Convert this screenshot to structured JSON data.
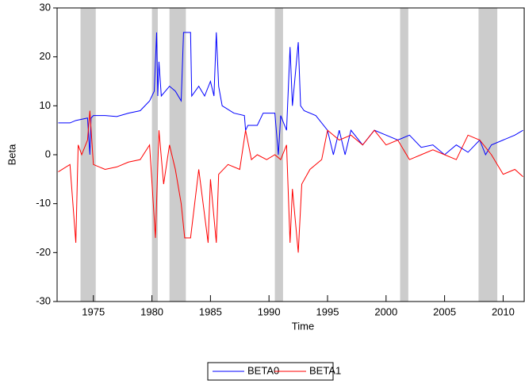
{
  "chart_data": {
    "type": "line",
    "x_label": "Time",
    "y_label": "Beta",
    "xlim": [
      1971.9,
      2011.8
    ],
    "xticks": [
      1975,
      1980,
      1985,
      1990,
      1995,
      2000,
      2005,
      2010
    ],
    "ylim": [
      -30,
      30
    ],
    "yticks": [
      -30,
      -20,
      -10,
      0,
      10,
      20,
      30
    ],
    "shaded_regions": [
      [
        1973.9,
        1975.2
      ],
      [
        1980.0,
        1980.5
      ],
      [
        1981.5,
        1982.9
      ],
      [
        1990.5,
        1991.2
      ],
      [
        2001.2,
        2001.9
      ],
      [
        2007.9,
        2009.5
      ]
    ],
    "shade_color": "#cccccc",
    "series": [
      {
        "name": "BETA0",
        "color": "#0000ff",
        "x": [
          1972,
          1973,
          1973.5,
          1974.5,
          1974.7,
          1974.8,
          1975,
          1976,
          1977,
          1978,
          1979,
          1979.8,
          1980.2,
          1980.4,
          1980.5,
          1980.6,
          1980.8,
          1981.5,
          1982,
          1982.5,
          1982.7,
          1983.3,
          1983.4,
          1984,
          1984.5,
          1985,
          1985.3,
          1985.5,
          1985.7,
          1986,
          1987,
          1987.9,
          1988,
          1988.2,
          1989,
          1989.5,
          1990.5,
          1990.8,
          1991,
          1991.5,
          1991.8,
          1992,
          1992.5,
          1992.7,
          1993,
          1994,
          1995,
          1995.5,
          1996,
          1996.5,
          1997,
          1998,
          1999,
          2000,
          2001,
          2002,
          2003,
          2004,
          2005,
          2006,
          2007,
          2008,
          2008.5,
          2009,
          2010,
          2011,
          2011.7
        ],
        "values": [
          6.5,
          6.5,
          7,
          7.5,
          0,
          7.5,
          8,
          8,
          7.8,
          8.5,
          9,
          11,
          13,
          25,
          12,
          19,
          12,
          14,
          13,
          11,
          25,
          25,
          12,
          14,
          12,
          15,
          12,
          25,
          14,
          10,
          8.5,
          8,
          5,
          6,
          6,
          8.5,
          8.5,
          0,
          8,
          5,
          22,
          10,
          23,
          10,
          9,
          8,
          5,
          0,
          5,
          0,
          5,
          2,
          5,
          4,
          3,
          4,
          1.5,
          2,
          0,
          2,
          0.5,
          3,
          0,
          2,
          3,
          4,
          5
        ]
      },
      {
        "name": "BETA1",
        "color": "#ff0000",
        "x": [
          1972,
          1973,
          1973.5,
          1973.7,
          1974,
          1974.5,
          1974.7,
          1975,
          1976,
          1977,
          1978,
          1979,
          1979.8,
          1980.3,
          1980.6,
          1981,
          1981.5,
          1982,
          1982.5,
          1982.8,
          1983.3,
          1984,
          1984.8,
          1985,
          1985.5,
          1985.7,
          1986.5,
          1987.5,
          1988,
          1988.5,
          1989,
          1989.8,
          1990.5,
          1991,
          1991.5,
          1991.8,
          1992,
          1992.5,
          1992.8,
          1993.5,
          1994.5,
          1995,
          1996,
          1997,
          1998,
          1999,
          2000,
          2001,
          2002,
          2003,
          2004,
          2005,
          2006,
          2007,
          2008,
          2009,
          2010,
          2011,
          2011.7
        ],
        "values": [
          -3.5,
          -2,
          -18,
          2,
          0,
          3,
          9,
          -2,
          -3,
          -2.5,
          -1.5,
          -1,
          2,
          -17,
          5,
          -6,
          2,
          -3,
          -10,
          -17,
          -17,
          -3,
          -18,
          -5,
          -18,
          -4,
          -2,
          -3,
          5,
          -1,
          0,
          -1,
          0,
          -1,
          2,
          -18,
          -7,
          -20,
          -6,
          -3,
          -1,
          5,
          3,
          4,
          2,
          5,
          2,
          3,
          -1,
          0,
          1,
          0,
          -1,
          4,
          3,
          0,
          -4,
          -3,
          -4.5
        ]
      }
    ]
  }
}
